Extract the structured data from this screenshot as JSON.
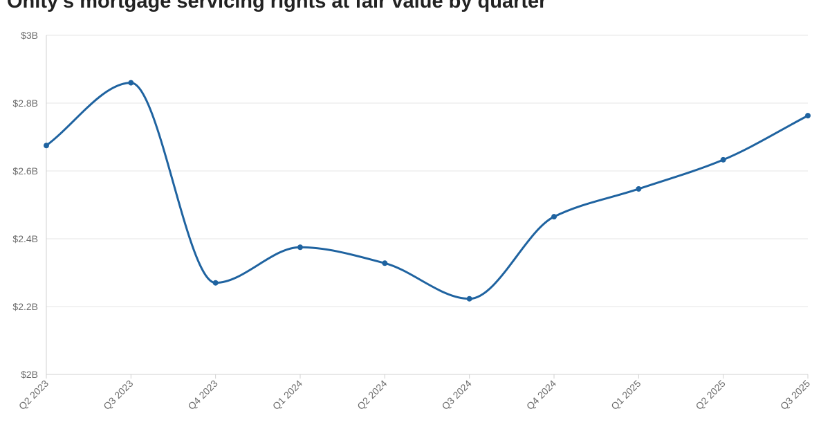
{
  "chart_data": {
    "type": "line",
    "title": "Onity's mortgage servicing rights at fair value by quarter",
    "xlabel": "",
    "ylabel": "",
    "categories": [
      "Q2 2023",
      "Q3 2023",
      "Q4 2023",
      "Q1 2024",
      "Q2 2024",
      "Q3 2024",
      "Q4 2024",
      "Q1 2025",
      "Q2 2025",
      "Q3 2025"
    ],
    "series": [
      {
        "values": [
          2.675,
          2.86,
          2.27,
          2.375,
          2.328,
          2.223,
          2.465,
          2.547,
          2.633,
          2.763
        ]
      }
    ],
    "ylim": [
      2.0,
      3.0
    ],
    "y_ticks": [
      {
        "value": 2.0,
        "label": "$2B"
      },
      {
        "value": 2.2,
        "label": "$2.2B"
      },
      {
        "value": 2.4,
        "label": "$2.4B"
      },
      {
        "value": 2.6,
        "label": "$2.6B"
      },
      {
        "value": 2.8,
        "label": "$2.8B"
      },
      {
        "value": 3.0,
        "label": "$3B"
      }
    ],
    "grid": true,
    "legend": "none",
    "line_color": "#1f63a0"
  }
}
